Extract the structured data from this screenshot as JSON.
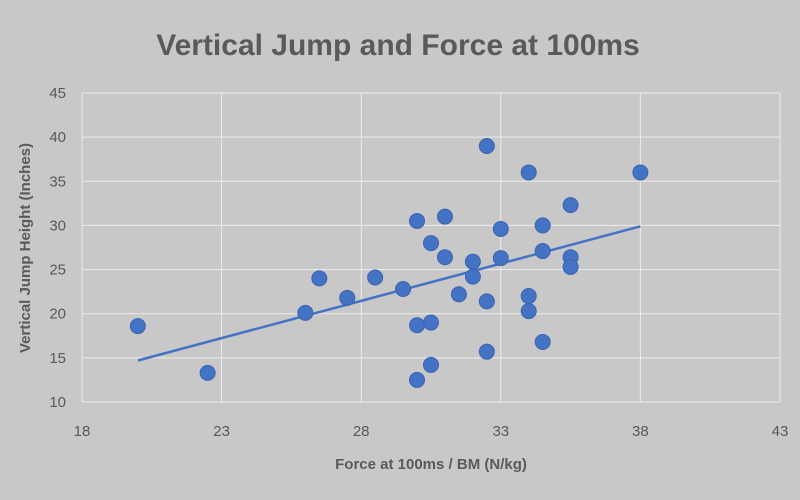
{
  "chart_data": {
    "type": "scatter",
    "title": "Vertical Jump and Force at 100ms",
    "xlabel": "Force at 100ms / BM (N/kg)",
    "ylabel": "Vertical Jump Height (Inches)",
    "xlim": [
      18,
      43
    ],
    "ylim": [
      10,
      45
    ],
    "xticks": [
      18,
      23,
      28,
      33,
      38,
      43
    ],
    "yticks": [
      10,
      15,
      20,
      25,
      30,
      35,
      40,
      45
    ],
    "grid": true,
    "legend": "none",
    "colors": {
      "background": "#c8c8c8",
      "grid": "#ececec",
      "marker": "#4472c4",
      "trendline": "#4472c4"
    },
    "series": [
      {
        "points": [
          [
            20.0,
            18.6
          ],
          [
            22.5,
            13.3
          ],
          [
            26.0,
            20.1
          ],
          [
            26.5,
            24.0
          ],
          [
            27.5,
            21.8
          ],
          [
            28.5,
            24.1
          ],
          [
            29.5,
            22.8
          ],
          [
            30.0,
            30.5
          ],
          [
            30.0,
            18.7
          ],
          [
            30.0,
            12.5
          ],
          [
            30.5,
            28.0
          ],
          [
            30.5,
            19.0
          ],
          [
            30.5,
            14.2
          ],
          [
            31.0,
            31.0
          ],
          [
            31.0,
            26.4
          ],
          [
            31.5,
            22.2
          ],
          [
            32.0,
            25.9
          ],
          [
            32.0,
            24.2
          ],
          [
            32.5,
            39.0
          ],
          [
            32.5,
            21.4
          ],
          [
            32.5,
            15.7
          ],
          [
            33.0,
            29.6
          ],
          [
            33.0,
            26.3
          ],
          [
            34.0,
            36.0
          ],
          [
            34.0,
            22.0
          ],
          [
            34.0,
            20.3
          ],
          [
            34.5,
            30.0
          ],
          [
            34.5,
            27.1
          ],
          [
            34.5,
            16.8
          ],
          [
            35.5,
            32.3
          ],
          [
            35.5,
            26.4
          ],
          [
            35.5,
            25.3
          ],
          [
            38.0,
            36.0
          ]
        ],
        "trendline": {
          "type": "linear",
          "x": [
            20,
            38
          ],
          "y": [
            14.7,
            29.9
          ]
        }
      }
    ]
  }
}
